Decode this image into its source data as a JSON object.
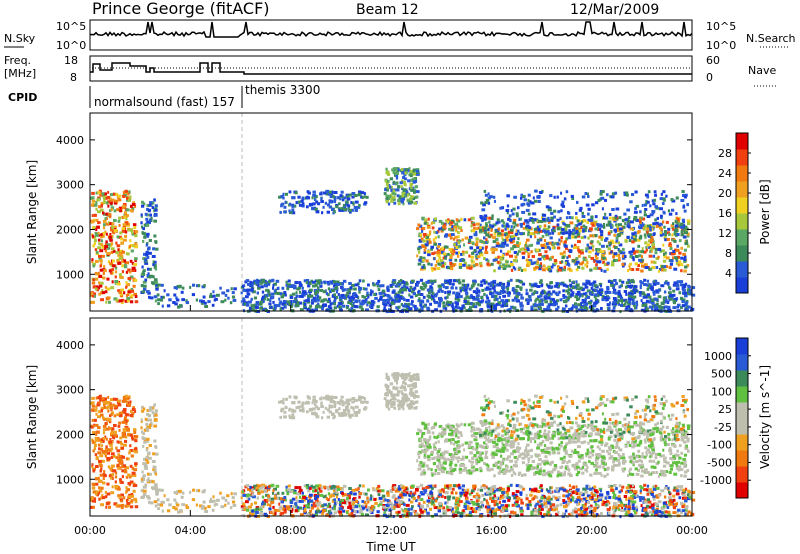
{
  "header": {
    "title": "Prince George (fitACF)",
    "beam": "Beam 12",
    "date": "12/Mar/2009"
  },
  "noise_panel": {
    "left_label": "N.Sky",
    "left_ticks": [
      "10^5",
      "10^0"
    ],
    "right_label": "N.Search",
    "right_ticks": [
      "10^5",
      "10^0"
    ]
  },
  "freq_panel": {
    "left_label_line1": "Freq.",
    "left_label_line2": "[MHz]",
    "left_ticks": [
      "18",
      "8"
    ],
    "right_label": "Nave",
    "right_ticks": [
      "60",
      "0"
    ]
  },
  "cpid": {
    "label": "CPID",
    "modes": [
      "normalsound (fast) 157",
      "themis 3300"
    ]
  },
  "colors": {
    "frame": "#000000",
    "background": "#ffffff",
    "power_scale": [
      "#1a3fd9",
      "#2a5bd6",
      "#3c8a5a",
      "#5aa864",
      "#a6c83a",
      "#f0d020",
      "#f0a020",
      "#f07a10",
      "#f04010",
      "#e00000"
    ],
    "velocity_scale": [
      "#e00000",
      "#f04010",
      "#f07a10",
      "#f0a020",
      "#bfbfb0",
      "#bfbfb0",
      "#60c040",
      "#3c8a5a",
      "#2a5bd6",
      "#1a3fd9"
    ]
  },
  "chart_data": [
    {
      "type": "heatmap",
      "title": "",
      "ylabel": "Slant Range [km]",
      "colorbar_label": "Power [dB]",
      "colorbar_ticks": [
        "28",
        "24",
        "20",
        "16",
        "12",
        "8",
        "4"
      ],
      "y_ticks": [
        "4000",
        "3000",
        "2000",
        "1000"
      ],
      "ylim": [
        180,
        4600
      ],
      "xlim": [
        0,
        24
      ],
      "gap_marker_hour": 6
    },
    {
      "type": "heatmap",
      "title": "",
      "ylabel": "Slant Range [km]",
      "xlabel": "Time UT",
      "colorbar_label": "Velocity [m s^-1]",
      "colorbar_ticks": [
        "1000",
        "500",
        "100",
        "25",
        "-25",
        "-100",
        "-500",
        "-1000"
      ],
      "y_ticks": [
        "4000",
        "3000",
        "2000",
        "1000"
      ],
      "x_ticks": [
        "00:00",
        "04:00",
        "08:00",
        "12:00",
        "16:00",
        "20:00",
        "00:00"
      ],
      "ylim": [
        180,
        4600
      ],
      "xlim": [
        0,
        24
      ],
      "gap_marker_hour": 6
    }
  ]
}
